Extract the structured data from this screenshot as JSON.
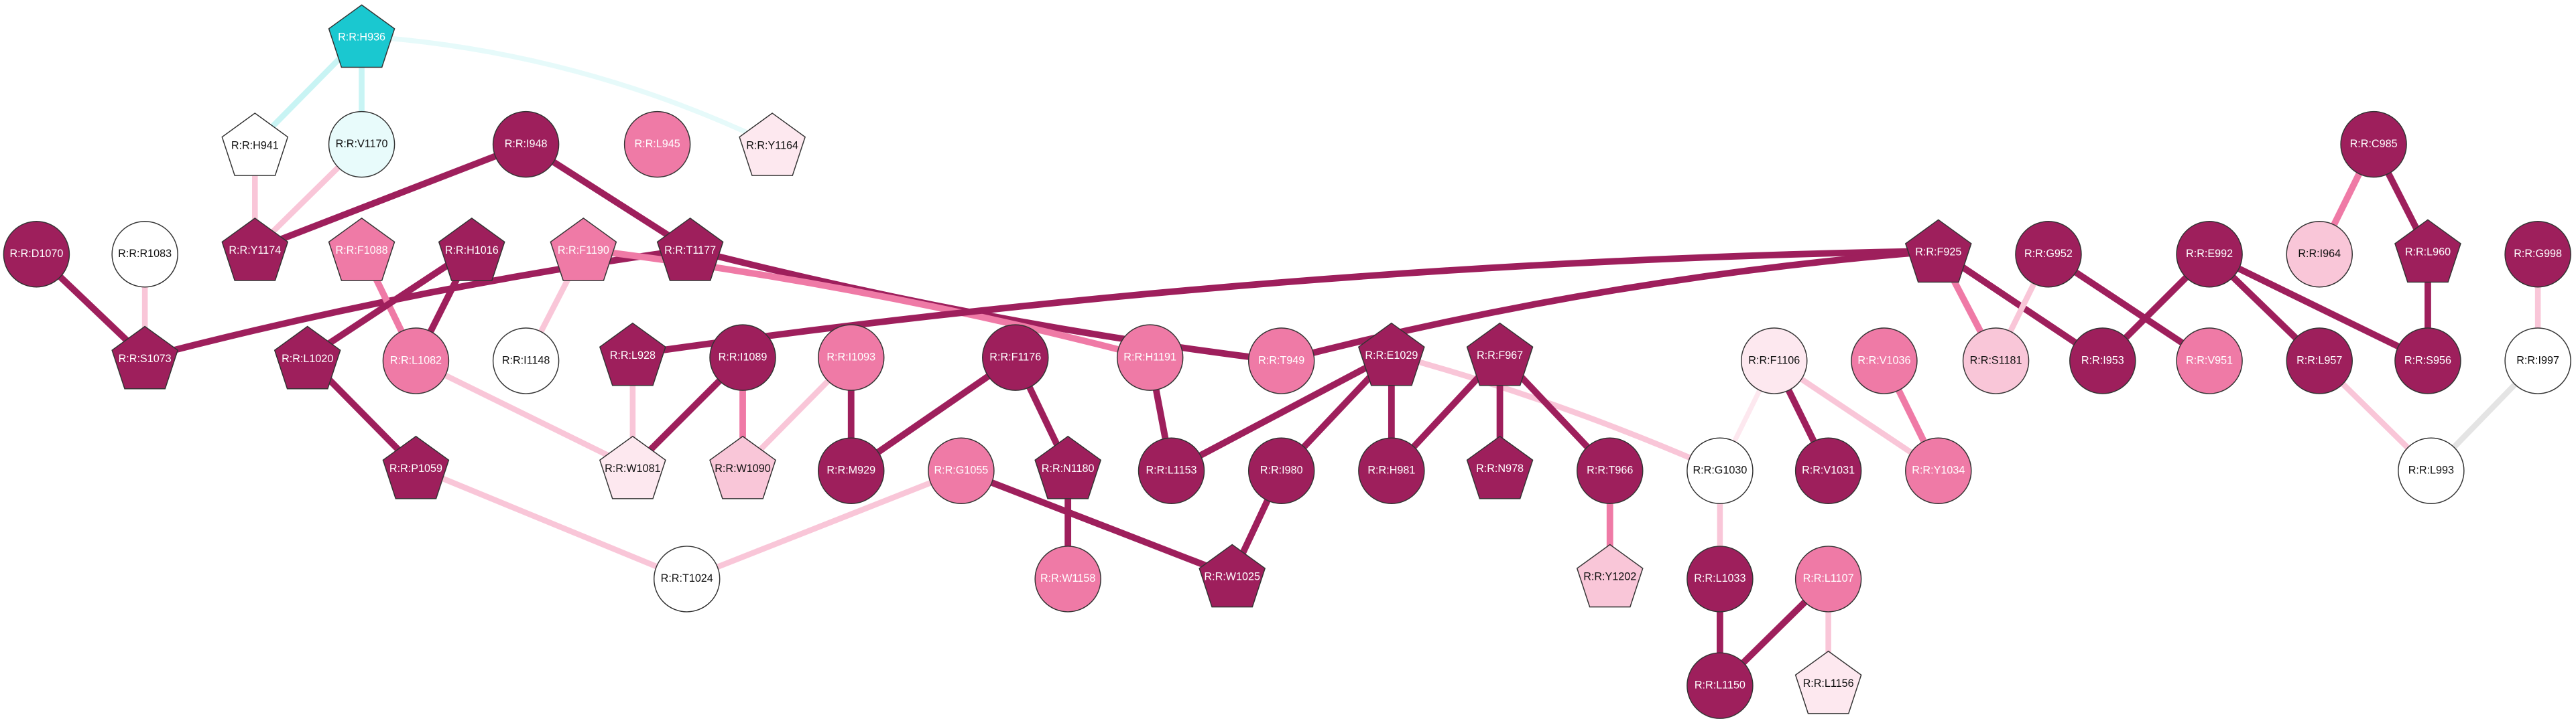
{
  "nodes": [
    {
      "label": "R:R:H936"
    },
    {
      "label": "R:R:H941"
    },
    {
      "label": "R:R:V1170"
    },
    {
      "label": "R:R:Y1164"
    },
    {
      "label": "R:R:I948"
    },
    {
      "label": "R:R:L945"
    },
    {
      "label": "R:R:Y1174"
    },
    {
      "label": "R:R:T1177"
    },
    {
      "label": "R:R:D1070"
    },
    {
      "label": "R:R:R1083"
    },
    {
      "label": "R:R:F1088"
    },
    {
      "label": "R:R:H1016"
    },
    {
      "label": "R:R:F1190"
    },
    {
      "label": "R:R:S1073"
    },
    {
      "label": "R:R:L1020"
    },
    {
      "label": "R:R:L1082"
    },
    {
      "label": "R:R:I1148"
    },
    {
      "label": "R:R:L928"
    },
    {
      "label": "R:R:I1089"
    },
    {
      "label": "R:R:I1093"
    },
    {
      "label": "R:R:F1176"
    },
    {
      "label": "R:R:H1191"
    },
    {
      "label": "R:R:T949"
    },
    {
      "label": "R:R:E1029"
    },
    {
      "label": "R:R:F967"
    },
    {
      "label": "R:R:F1106"
    },
    {
      "label": "R:R:V1036"
    },
    {
      "label": "R:R:F925"
    },
    {
      "label": "R:R:G952"
    },
    {
      "label": "R:R:E992"
    },
    {
      "label": "R:R:S1181"
    },
    {
      "label": "R:R:I953"
    },
    {
      "label": "R:R:V951"
    },
    {
      "label": "R:R:C985"
    },
    {
      "label": "R:R:I964"
    },
    {
      "label": "R:R:L960"
    },
    {
      "label": "R:R:G998"
    },
    {
      "label": "R:R:L957"
    },
    {
      "label": "R:R:S956"
    },
    {
      "label": "R:R:I997"
    },
    {
      "label": "R:R:P1059"
    },
    {
      "label": "R:R:W1081"
    },
    {
      "label": "R:R:W1090"
    },
    {
      "label": "R:R:M929"
    },
    {
      "label": "R:R:G1055"
    },
    {
      "label": "R:R:N1180"
    },
    {
      "label": "R:R:I980"
    },
    {
      "label": "R:R:H981"
    },
    {
      "label": "R:R:N978"
    },
    {
      "label": "R:R:T966"
    },
    {
      "label": "R:R:G1030"
    },
    {
      "label": "R:R:V1031"
    },
    {
      "label": "R:R:Y1034"
    },
    {
      "label": "R:R:L993"
    },
    {
      "label": "R:R:T1024"
    },
    {
      "label": "R:R:W1158"
    },
    {
      "label": "R:R:W1025"
    },
    {
      "label": "R:R:Y1202"
    },
    {
      "label": "R:R:L1033"
    },
    {
      "label": "R:R:L1107"
    },
    {
      "label": "R:R:L1150"
    },
    {
      "label": "R:R:L1156"
    },
    {
      "label": "R:R:L1153"
    }
  ]
}
